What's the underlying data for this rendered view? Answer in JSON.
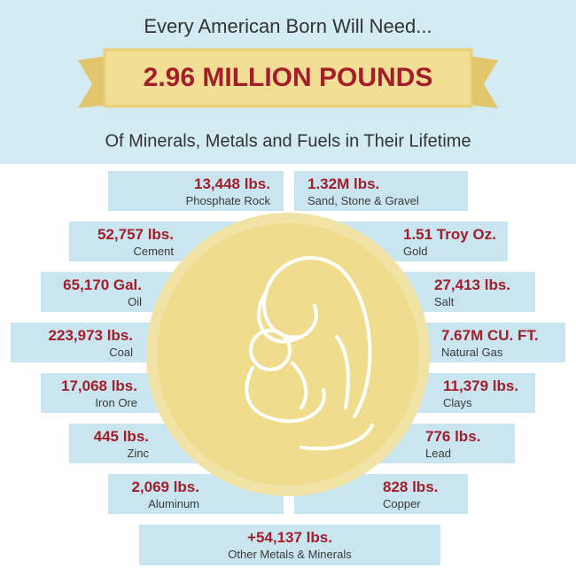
{
  "header": {
    "intro": "Every American Born Will Need...",
    "headline": "2.96 MILLION POUNDS",
    "subtitle": "Of Minerals, Metals and Fuels in Their Lifetime"
  },
  "rows": [
    {
      "left": {
        "amount": "13,448 lbs.",
        "label": "Phosphate Rock"
      },
      "right": {
        "amount": "1.32M lbs.",
        "label": "Sand, Stone & Gravel"
      }
    },
    {
      "left": {
        "amount": "52,757 lbs.",
        "label": "Cement"
      },
      "right": {
        "amount": "1.51 Troy Oz.",
        "label": "Gold"
      }
    },
    {
      "left": {
        "amount": "65,170 Gal.",
        "label": "Oil"
      },
      "right": {
        "amount": "27,413 lbs.",
        "label": "Salt"
      }
    },
    {
      "left": {
        "amount": "223,973 lbs.",
        "label": "Coal"
      },
      "right": {
        "amount": "7.67M CU. FT.",
        "label": "Natural Gas"
      }
    },
    {
      "left": {
        "amount": "17,068 lbs.",
        "label": "Iron Ore"
      },
      "right": {
        "amount": "11,379 lbs.",
        "label": "Clays"
      }
    },
    {
      "left": {
        "amount": "445 lbs.",
        "label": "Zinc"
      },
      "right": {
        "amount": "776 lbs.",
        "label": "Lead"
      }
    },
    {
      "left": {
        "amount": "2,069 lbs.",
        "label": "Aluminum"
      },
      "right": {
        "amount": "828 lbs.",
        "label": "Copper"
      }
    }
  ],
  "footer": {
    "amount": "+54,137 lbs.",
    "label": "Other Metals & Minerals"
  }
}
